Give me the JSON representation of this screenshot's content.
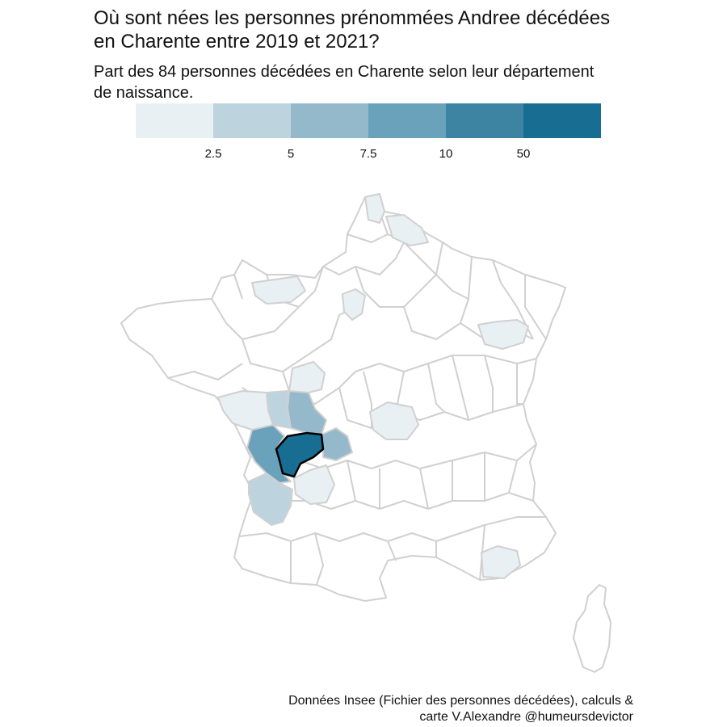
{
  "title": "Où sont nées les personnes prénommées Andree décédées\nen Charente entre 2019 et 2021?",
  "subtitle": "Part des 84 personnes décédées en Charente selon leur département\nde naissance.",
  "legend": {
    "breaks": [
      "2.5",
      "5",
      "7.5",
      "10",
      "50"
    ],
    "colors": [
      "#e8f0f3",
      "#bdd4de",
      "#93b9cb",
      "#6aa2bb",
      "#3d84a3",
      "#186e92"
    ]
  },
  "map": {
    "highlighted_department": "Charente",
    "border_color": "#d0d0d0",
    "highlight_border_color": "#000000",
    "default_fill": "#ffffff"
  },
  "chart_data": {
    "type": "choropleth",
    "region": "France métropolitaine (départements)",
    "categories": [
      {
        "department": "Charente",
        "class": 5
      },
      {
        "department": "Charente-Maritime",
        "class": 3
      },
      {
        "department": "Vienne",
        "class": 2
      },
      {
        "department": "Haute-Vienne",
        "class": 2
      },
      {
        "department": "Gironde",
        "class": 1
      },
      {
        "department": "Deux-Sèvres",
        "class": 1
      },
      {
        "department": "Dordogne",
        "class": 0
      },
      {
        "department": "Vendée",
        "class": 0
      },
      {
        "department": "Indre-et-Loire",
        "class": 0
      },
      {
        "department": "Allier",
        "class": 0
      },
      {
        "department": "Calvados",
        "class": 0
      },
      {
        "department": "Oise",
        "class": 0
      },
      {
        "department": "Nord",
        "class": 0
      },
      {
        "department": "Pas-de-Calais",
        "class": 0
      },
      {
        "department": "Vosges",
        "class": 0
      },
      {
        "department": "Var",
        "class": 0
      }
    ]
  },
  "caption": "Données Insee (Fichier des personnes décédées), calculs &\ncarte V.Alexandre @humeursdevictor"
}
